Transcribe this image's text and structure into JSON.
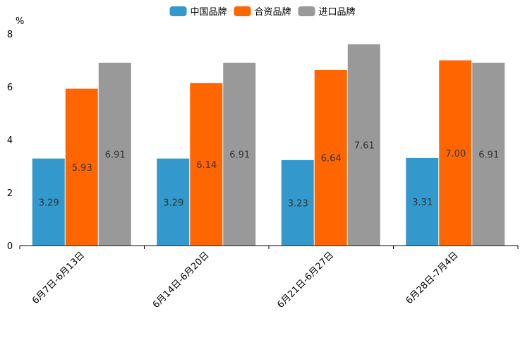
{
  "chart_data": {
    "type": "bar",
    "title": "",
    "xlabel": "",
    "ylabel": "%",
    "ylim": [
      0,
      8
    ],
    "yticks": [
      0,
      2,
      4,
      6,
      8
    ],
    "grid": false,
    "legend_position": "top-center",
    "categories": [
      "6月7日-6月13日",
      "6月14日-6月20日",
      "6月21日-6月27日",
      "6月28日-7月4日"
    ],
    "series": [
      {
        "name": "中国品牌",
        "color": "#3399cc",
        "values": [
          3.29,
          3.29,
          3.23,
          3.31
        ],
        "labels": [
          "3.29",
          "3.29",
          "3.23",
          "3.31"
        ]
      },
      {
        "name": "合资品牌",
        "color": "#ff6600",
        "values": [
          5.93,
          6.14,
          6.64,
          7.0
        ],
        "labels": [
          "5.93",
          "6.14",
          "6.64",
          "7.00"
        ]
      },
      {
        "name": "进口品牌",
        "color": "#999999",
        "values": [
          6.91,
          6.91,
          7.61,
          6.91
        ],
        "labels": [
          "6.91",
          "6.91",
          "7.61",
          "6.91"
        ]
      }
    ]
  }
}
